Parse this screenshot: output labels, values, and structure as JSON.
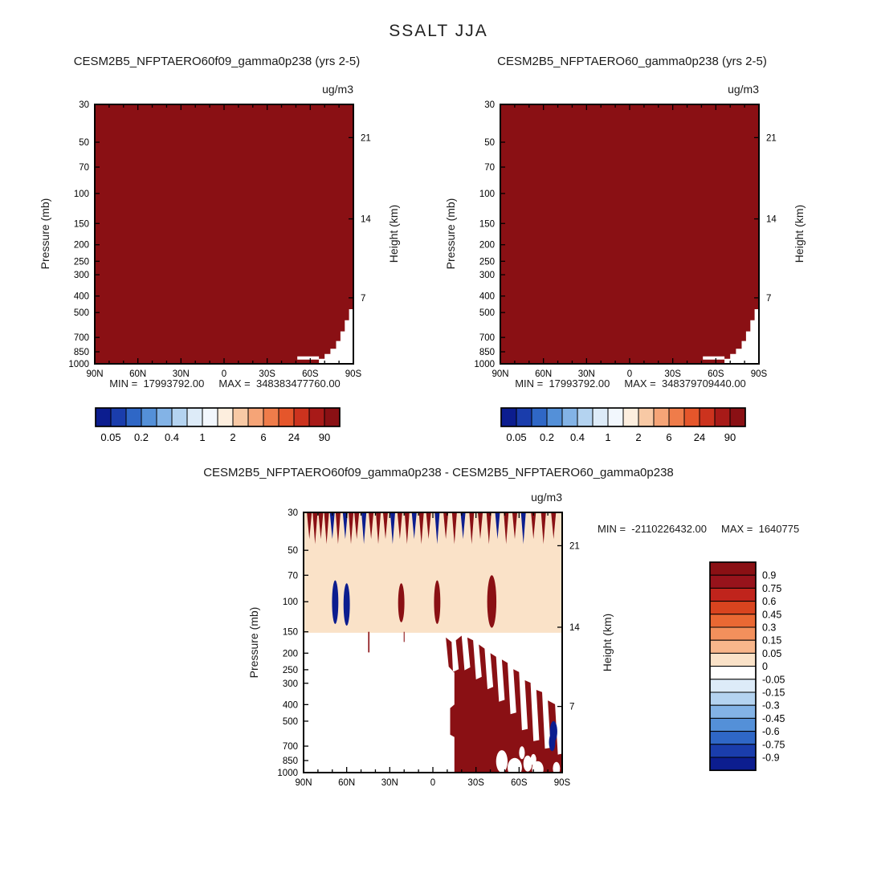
{
  "main_title": "SSALT JJA",
  "axes": {
    "units": "ug/m3",
    "pressure_label": "Pressure (mb)",
    "height_label": "Height (km)",
    "pressure_ticks": [
      30,
      50,
      70,
      100,
      150,
      200,
      250,
      300,
      400,
      500,
      700,
      850,
      1000
    ],
    "height_ticks": [
      {
        "km": 21,
        "p": 47
      },
      {
        "km": 14,
        "p": 141
      },
      {
        "km": 7,
        "p": 410
      }
    ],
    "lat_ticks": [
      {
        "label": "90N",
        "lat": 90
      },
      {
        "label": "60N",
        "lat": 60
      },
      {
        "label": "30N",
        "lat": 30
      },
      {
        "label": "0",
        "lat": 0
      },
      {
        "label": "30S",
        "lat": -30
      },
      {
        "label": "60S",
        "lat": -60
      },
      {
        "label": "90S",
        "lat": -90
      }
    ],
    "lat_minor_step": 10
  },
  "colors": {
    "dark_red": "#8a1014",
    "navy": "#0c1d8f",
    "peach": "#fae2c8",
    "white": "#ffffff"
  },
  "panels": [
    {
      "key": "a",
      "title": "CESM2B5_NFPTAERO60f09_gamma0p238 (yrs 2-5)",
      "min_label": "MIN =  17993792.00",
      "max_label": "MAX =  348383477760.00"
    },
    {
      "key": "b",
      "title": "CESM2B5_NFPTAERO60_gamma0p238 (yrs 2-5)",
      "min_label": "MIN =  17993792.00",
      "max_label": "MAX =  348379709440.00"
    },
    {
      "key": "d",
      "title": "CESM2B5_NFPTAERO60f09_gamma0p238 - CESM2B5_NFPTAERO60_gamma0p238",
      "min_label": "MIN =  -2110226432.00",
      "max_label": "MAX =  1640775"
    }
  ],
  "colorbar_h": {
    "labels": [
      "0.05",
      "0.2",
      "0.4",
      "1",
      "2",
      "6",
      "24",
      "90"
    ],
    "colors": [
      "#0c1d8f",
      "#1a3dac",
      "#2f67c6",
      "#5490d8",
      "#83b3e6",
      "#b4d3f0",
      "#ddebf8",
      "#f2f7fd",
      "#fdeede",
      "#f8c9a5",
      "#f5a477",
      "#ef7c4a",
      "#e5562b",
      "#cc331e",
      "#a81a18",
      "#8a1014"
    ]
  },
  "colorbar_v": {
    "labels": [
      "0.9",
      "0.75",
      "0.6",
      "0.45",
      "0.3",
      "0.15",
      "0.05",
      "0",
      "-0.05",
      "-0.15",
      "-0.3",
      "-0.45",
      "-0.6",
      "-0.75",
      "-0.9"
    ],
    "colors": [
      "#8a1014",
      "#97131b",
      "#c0241c",
      "#d9441f",
      "#ea6833",
      "#f3905c",
      "#f8b68b",
      "#fae2c8",
      "#ffffff",
      "#ddebf8",
      "#b4d3f0",
      "#83b3e6",
      "#5490d8",
      "#2f67c6",
      "#1a3dac",
      "#0c1d8f"
    ]
  },
  "fields": {
    "saturated": {
      "white_wedge": [
        [
          -66,
          1000
        ],
        [
          -66,
          935
        ],
        [
          -70,
          935
        ],
        [
          -70,
          875
        ],
        [
          -74,
          875
        ],
        [
          -74,
          815
        ],
        [
          -78,
          815
        ],
        [
          -78,
          735
        ],
        [
          -81,
          735
        ],
        [
          -81,
          645
        ],
        [
          -84,
          645
        ],
        [
          -84,
          555
        ],
        [
          -87,
          555
        ],
        [
          -87,
          478
        ],
        [
          -90,
          478
        ],
        [
          -90,
          1000
        ]
      ],
      "white_strip": {
        "lat0": -51,
        "lat1": -66,
        "p0": 905,
        "p1": 945
      }
    },
    "diff": {
      "band_bottom_p": 152,
      "top_spikes": [
        [
          86,
          "r"
        ],
        [
          82,
          "r"
        ],
        [
          78,
          "r"
        ],
        [
          74,
          "r"
        ],
        [
          70,
          "b"
        ],
        [
          66,
          "r"
        ],
        [
          61,
          "b"
        ],
        [
          57,
          "r"
        ],
        [
          53,
          "r"
        ],
        [
          48,
          "b"
        ],
        [
          43,
          "r"
        ],
        [
          38,
          "r"
        ],
        [
          33,
          "r"
        ],
        [
          28,
          "b"
        ],
        [
          23,
          "r"
        ],
        [
          18,
          "r"
        ],
        [
          13,
          "b"
        ],
        [
          8,
          "r"
        ],
        [
          3,
          "r"
        ],
        [
          -3,
          "b"
        ],
        [
          -9,
          "r"
        ],
        [
          -15,
          "r"
        ],
        [
          -21,
          "b"
        ],
        [
          -27,
          "r"
        ],
        [
          -33,
          "r"
        ],
        [
          -39,
          "r"
        ],
        [
          -45,
          "b"
        ],
        [
          -51,
          "r"
        ],
        [
          -57,
          "r"
        ],
        [
          -63,
          "b"
        ],
        [
          -70,
          "r"
        ],
        [
          -77,
          "r"
        ],
        [
          -84,
          "r"
        ]
      ],
      "mid_cells": [
        [
          68,
          "b",
          2.2,
          75,
          135
        ],
        [
          60,
          "b",
          2.2,
          78,
          138
        ],
        [
          22,
          "r",
          2.2,
          78,
          132
        ],
        [
          -3,
          "r",
          2.2,
          75,
          135
        ],
        [
          -41,
          "r",
          3.2,
          70,
          142
        ]
      ],
      "red_streaks": [
        [
          44.6,
          0.9,
          150,
          198
        ],
        [
          20,
          0.6,
          150,
          172
        ]
      ],
      "positive_region": [
        [
          -15,
          1000
        ],
        [
          -15,
          620
        ],
        [
          -12,
          600
        ],
        [
          -12,
          420
        ],
        [
          -15,
          400
        ],
        [
          -15,
          260
        ],
        [
          -11,
          240
        ],
        [
          -9,
          162
        ],
        [
          -13,
          172
        ],
        [
          -14,
          258
        ],
        [
          -18,
          248
        ],
        [
          -16,
          168
        ],
        [
          -20,
          158
        ],
        [
          -22,
          252
        ],
        [
          -26,
          242
        ],
        [
          -24,
          162
        ],
        [
          -28,
          168
        ],
        [
          -30,
          285
        ],
        [
          -34,
          275
        ],
        [
          -32,
          178
        ],
        [
          -36,
          188
        ],
        [
          -38,
          325
        ],
        [
          -42,
          315
        ],
        [
          -40,
          200
        ],
        [
          -44,
          210
        ],
        [
          -46,
          385
        ],
        [
          -50,
          375
        ],
        [
          -48,
          218
        ],
        [
          -52,
          228
        ],
        [
          -54,
          455
        ],
        [
          -58,
          445
        ],
        [
          -56,
          248
        ],
        [
          -60,
          258
        ],
        [
          -62,
          565
        ],
        [
          -66,
          555
        ],
        [
          -64,
          288
        ],
        [
          -68,
          298
        ],
        [
          -70,
          655
        ],
        [
          -74,
          645
        ],
        [
          -72,
          328
        ],
        [
          -76,
          338
        ],
        [
          -78,
          725
        ],
        [
          -82,
          715
        ],
        [
          -80,
          378
        ],
        [
          -85,
          398
        ],
        [
          -87,
          785
        ],
        [
          -90,
          775
        ],
        [
          -90,
          1000
        ]
      ],
      "white_cells": [
        [
          -48,
          860,
          4,
          14
        ],
        [
          -57,
          935,
          5,
          12
        ],
        [
          -66,
          885,
          3,
          10
        ],
        [
          -73,
          955,
          4,
          10
        ],
        [
          -86,
          945,
          2.5,
          8
        ],
        [
          -62,
          765,
          2,
          8
        ],
        [
          -70,
          840,
          2,
          7
        ]
      ],
      "negative_cells": [
        [
          -84,
          575,
          2.6,
          13
        ],
        [
          -83,
          665,
          2.2,
          11
        ]
      ]
    }
  },
  "chart_data": [
    {
      "type": "contour",
      "panel": "top-left",
      "title": "CESM2B5_NFPTAERO60f09_gamma0p238 (yrs 2-5)",
      "units": "ug/m3",
      "x_axis": {
        "ticks": [
          "90N",
          "60N",
          "30N",
          "0",
          "30S",
          "60S",
          "90S"
        ],
        "range": [
          "90N",
          "90S"
        ]
      },
      "y_axis_left": {
        "label": "Pressure (mb)",
        "scale": "log",
        "ticks": [
          30,
          50,
          70,
          100,
          150,
          200,
          250,
          300,
          400,
          500,
          700,
          850,
          1000
        ],
        "range": [
          30,
          1000
        ]
      },
      "y_axis_right": {
        "label": "Height (km)",
        "ticks": [
          21,
          14,
          7
        ]
      },
      "contour_levels": [
        0.05,
        0.2,
        0.4,
        1,
        2,
        6,
        24,
        90
      ],
      "min": 17993792.0,
      "max": 348383477760.0,
      "field_summary": "Field exceeds the top contour level (> 90 ug/m3, darkest red) at essentially all latitudes and levels; a small white below-range wedge appears near the surface (about 500-1000 mb) poleward of roughly 66S."
    },
    {
      "type": "contour",
      "panel": "top-right",
      "title": "CESM2B5_NFPTAERO60_gamma0p238 (yrs 2-5)",
      "units": "ug/m3",
      "x_axis": {
        "ticks": [
          "90N",
          "60N",
          "30N",
          "0",
          "30S",
          "60S",
          "90S"
        ],
        "range": [
          "90N",
          "90S"
        ]
      },
      "y_axis_left": {
        "label": "Pressure (mb)",
        "scale": "log",
        "ticks": [
          30,
          50,
          70,
          100,
          150,
          200,
          250,
          300,
          400,
          500,
          700,
          850,
          1000
        ],
        "range": [
          30,
          1000
        ]
      },
      "y_axis_right": {
        "label": "Height (km)",
        "ticks": [
          21,
          14,
          7
        ]
      },
      "contour_levels": [
        0.05,
        0.2,
        0.4,
        1,
        2,
        6,
        24,
        90
      ],
      "min": 17993792.0,
      "max": 348379709440.0,
      "field_summary": "Nearly identical to top-left panel: saturated dark red everywhere with a small white below-range wedge near the surface poleward of about 66S."
    },
    {
      "type": "contour-difference",
      "panel": "bottom",
      "title": "CESM2B5_NFPTAERO60f09_gamma0p238 - CESM2B5_NFPTAERO60_gamma0p238",
      "units": "ug/m3",
      "x_axis": {
        "ticks": [
          "90N",
          "60N",
          "30N",
          "0",
          "30S",
          "60S",
          "90S"
        ],
        "range": [
          "90N",
          "90S"
        ]
      },
      "y_axis_left": {
        "label": "Pressure (mb)",
        "scale": "log",
        "ticks": [
          30,
          50,
          70,
          100,
          150,
          200,
          250,
          300,
          400,
          500,
          700,
          850,
          1000
        ],
        "range": [
          30,
          1000
        ]
      },
      "y_axis_right": {
        "label": "Height (km)",
        "ticks": [
          21,
          14,
          7
        ]
      },
      "contour_levels": [
        -0.9,
        -0.75,
        -0.6,
        -0.45,
        -0.3,
        -0.15,
        -0.05,
        0,
        0.05,
        0.15,
        0.3,
        0.45,
        0.6,
        0.75,
        0.9
      ],
      "min": -2110226432.0,
      "max_visible": "1640775",
      "field_summary": "Weak positive band (0 to 0.05) from 30 to about 150 mb; alternating strong positive (dark red) and negative (dark blue) spikes along the 30 mb top edge; isolated strong cells near 100 mb (negative near 60-70N, positive near 22N, 3S and 41S); near-zero (white) below 150 mb north of about 12S; strong positive region south of about 15S from roughly 200 mb to the surface with ragged top, embedded white cells near the surface between 45S and 90S, and strong negative cells near 83-85S around 500-700 mb."
    }
  ]
}
